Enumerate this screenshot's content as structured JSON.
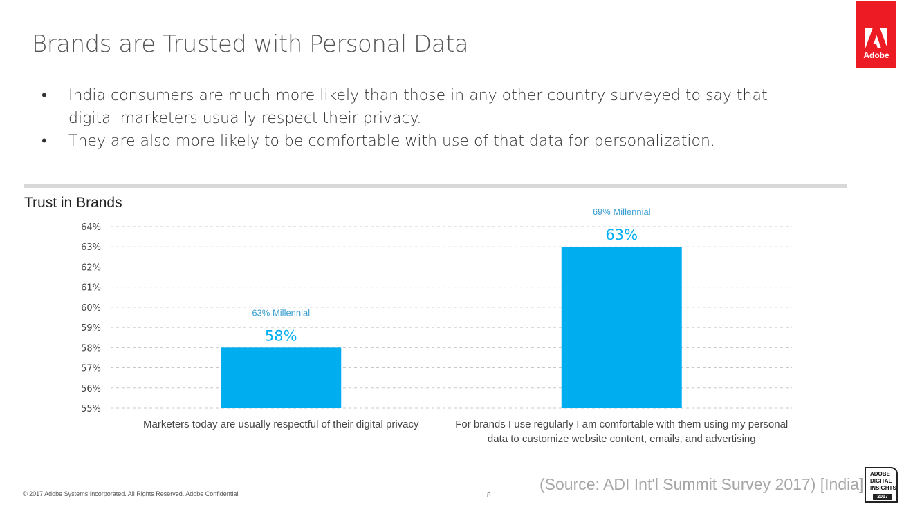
{
  "header": {
    "title": "Brands are Trusted with Personal Data",
    "logo_label": "Adobe"
  },
  "bullets": [
    "India consumers are much more likely than those in any other country surveyed to say that digital marketers usually respect their privacy.",
    "They are also more likely to be comfortable with use of that data for personalization."
  ],
  "chart_data": {
    "type": "bar",
    "title": "Trust in Brands",
    "categories": [
      "Marketers today are usually respectful of their digital privacy",
      "For brands I use regularly I am comfortable with them using my personal data to customize website content, emails, and advertising"
    ],
    "category_lines": [
      [
        "Marketers today are usually respectful of their digital privacy"
      ],
      [
        "For brands I use regularly I am comfortable with them using my personal",
        "data to customize website content, emails, and advertising"
      ]
    ],
    "values": [
      58,
      63
    ],
    "value_labels": [
      "58%",
      "63%"
    ],
    "annotations": [
      "63% Millennial",
      "69% Millennial"
    ],
    "ylim": [
      55,
      64
    ],
    "yticks": [
      55,
      56,
      57,
      58,
      59,
      60,
      61,
      62,
      63,
      64
    ],
    "ytick_labels": [
      "55%",
      "56%",
      "57%",
      "58%",
      "59%",
      "60%",
      "61%",
      "62%",
      "63%",
      "64%"
    ],
    "grid": true,
    "bar_color": "#00aeef",
    "annotation_color": "#3c9fd0",
    "xlabel": "",
    "ylabel": ""
  },
  "footer": {
    "copyright": "© 2017 Adobe Systems Incorporated.  All Rights Reserved.  Adobe Confidential.",
    "page_number": "8",
    "source": "(Source: ADI Int'l Summit Survey 2017) [India]",
    "badge_lines": [
      "ADOBE",
      "DIGITAL",
      "INSIGHTS"
    ],
    "badge_year": "2017"
  }
}
